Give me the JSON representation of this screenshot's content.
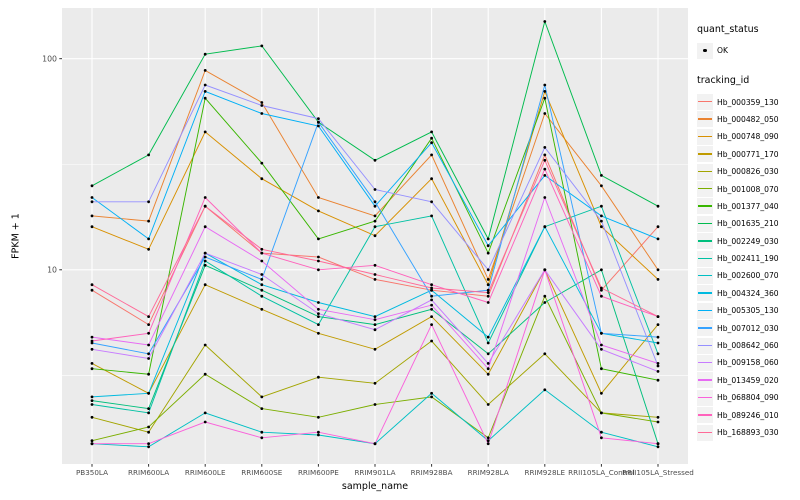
{
  "chart_data": {
    "type": "line",
    "title": "",
    "xlabel": "sample_name",
    "ylabel": "FPKM + 1",
    "y_scale": "log10",
    "y_ticks": [
      10,
      100
    ],
    "y_minor_gridlines_log10": [
      0.5,
      1.5
    ],
    "y_domain_log10": [
      0.08,
      2.24
    ],
    "grid": true,
    "panel_bg": "#EBEBEB",
    "grid_color": "#FFFFFF",
    "point_color": "#000000",
    "tick_color": "#333333",
    "tick_label_color": "#4D4D4D",
    "legend_position": "right",
    "legend": {
      "quant_status_title": "quant_status",
      "ok_label": "OK",
      "tracking_id_title": "tracking_id"
    },
    "categories": [
      "PB350LA",
      "RRIM600LA",
      "RRIM600LE",
      "RRIM600SE",
      "RRIM600PE",
      "RRIM901LA",
      "RRIM928BA",
      "RRIM928LA",
      "RRIM928LE",
      "RRII105LA_Control",
      "RRII105LA_Stressed"
    ],
    "series": [
      {
        "name": "Hb_000359_130",
        "color": "#F8766D",
        "values": [
          8,
          5.5,
          20,
          12,
          11.5,
          9,
          8,
          7.5,
          35,
          8,
          16
        ]
      },
      {
        "name": "Hb_000482_050",
        "color": "#EA8331",
        "values": [
          18,
          17,
          88,
          62,
          22,
          18,
          35,
          9,
          55,
          25,
          10
        ]
      },
      {
        "name": "Hb_000748_090",
        "color": "#D89000",
        "values": [
          16,
          12.5,
          45,
          27,
          19,
          14.5,
          27,
          8.5,
          70,
          16,
          9
        ]
      },
      {
        "name": "Hb_000771_170",
        "color": "#C09B00",
        "values": [
          3.6,
          2.6,
          8.5,
          6.5,
          5,
          4.2,
          6,
          3.2,
          10,
          2.6,
          5.5
        ]
      },
      {
        "name": "Hb_000826_030",
        "color": "#A3A500",
        "values": [
          2.0,
          1.7,
          4.4,
          2.5,
          3.1,
          2.9,
          4.6,
          2.3,
          4.0,
          2.1,
          2.0
        ]
      },
      {
        "name": "Hb_001008_070",
        "color": "#7CAE00",
        "values": [
          1.55,
          1.8,
          3.2,
          2.2,
          2.0,
          2.3,
          2.5,
          1.6,
          7.5,
          2.1,
          1.9
        ]
      },
      {
        "name": "Hb_001377_040",
        "color": "#39B600",
        "values": [
          3.4,
          3.2,
          65,
          32,
          14,
          17,
          42,
          12,
          65,
          3.4,
          3.0
        ]
      },
      {
        "name": "Hb_001635_210",
        "color": "#00BB4E",
        "values": [
          25,
          35,
          105,
          115,
          50,
          33,
          45,
          14,
          150,
          28,
          20
        ]
      },
      {
        "name": "Hb_002249_030",
        "color": "#00BF7D",
        "values": [
          2.4,
          2.2,
          10.5,
          8,
          6,
          5.5,
          6.5,
          4,
          7,
          10,
          1.5
        ]
      },
      {
        "name": "Hb_002411_190",
        "color": "#00C1A3",
        "values": [
          2.3,
          2.1,
          11,
          7.5,
          5.5,
          16,
          18,
          4.5,
          16,
          20,
          4
        ]
      },
      {
        "name": "Hb_002600_070",
        "color": "#00BFC4",
        "values": [
          1.5,
          1.45,
          2.1,
          1.7,
          1.65,
          1.5,
          2.6,
          1.55,
          2.7,
          1.7,
          1.45
        ]
      },
      {
        "name": "Hb_004324_360",
        "color": "#00BAE0",
        "values": [
          2.5,
          2.6,
          12,
          8.5,
          7,
          6,
          8,
          4.8,
          16,
          5,
          4.5
        ]
      },
      {
        "name": "Hb_005305_130",
        "color": "#00B0F6",
        "values": [
          22,
          14,
          70,
          55,
          48,
          20,
          40,
          13,
          28,
          18,
          14
        ]
      },
      {
        "name": "Hb_007012_030",
        "color": "#35A2FF",
        "values": [
          4.5,
          4,
          11.5,
          9,
          50,
          21,
          7.5,
          8,
          75,
          5,
          4.8
        ]
      },
      {
        "name": "Hb_008642_060",
        "color": "#9590FF",
        "values": [
          21,
          21,
          75,
          60,
          52,
          24,
          21,
          10,
          38,
          17,
          3.5
        ]
      },
      {
        "name": "Hb_009158_060",
        "color": "#C77CFF",
        "values": [
          4.2,
          3.8,
          12,
          9.5,
          6.2,
          5.2,
          7.2,
          3.6,
          10,
          4.2,
          3.3
        ]
      },
      {
        "name": "Hb_013459_020",
        "color": "#E76BF3",
        "values": [
          4.8,
          4.4,
          16,
          11,
          6.5,
          5.8,
          6.8,
          3.4,
          22,
          4.4,
          3.6
        ]
      },
      {
        "name": "Hb_068804_090",
        "color": "#FA62DB",
        "values": [
          1.5,
          1.5,
          1.9,
          1.6,
          1.7,
          1.5,
          5.5,
          1.5,
          10,
          1.6,
          1.5
        ]
      },
      {
        "name": "Hb_089246_010",
        "color": "#FF62BC",
        "values": [
          4.6,
          5,
          22,
          12,
          10,
          10.5,
          8.5,
          7,
          30,
          7.5,
          6
        ]
      },
      {
        "name": "Hb_168893_030",
        "color": "#FF6A98",
        "values": [
          8.5,
          6,
          20,
          12.5,
          11,
          9.5,
          8.2,
          7.8,
          33,
          8.2,
          6
        ]
      }
    ]
  }
}
